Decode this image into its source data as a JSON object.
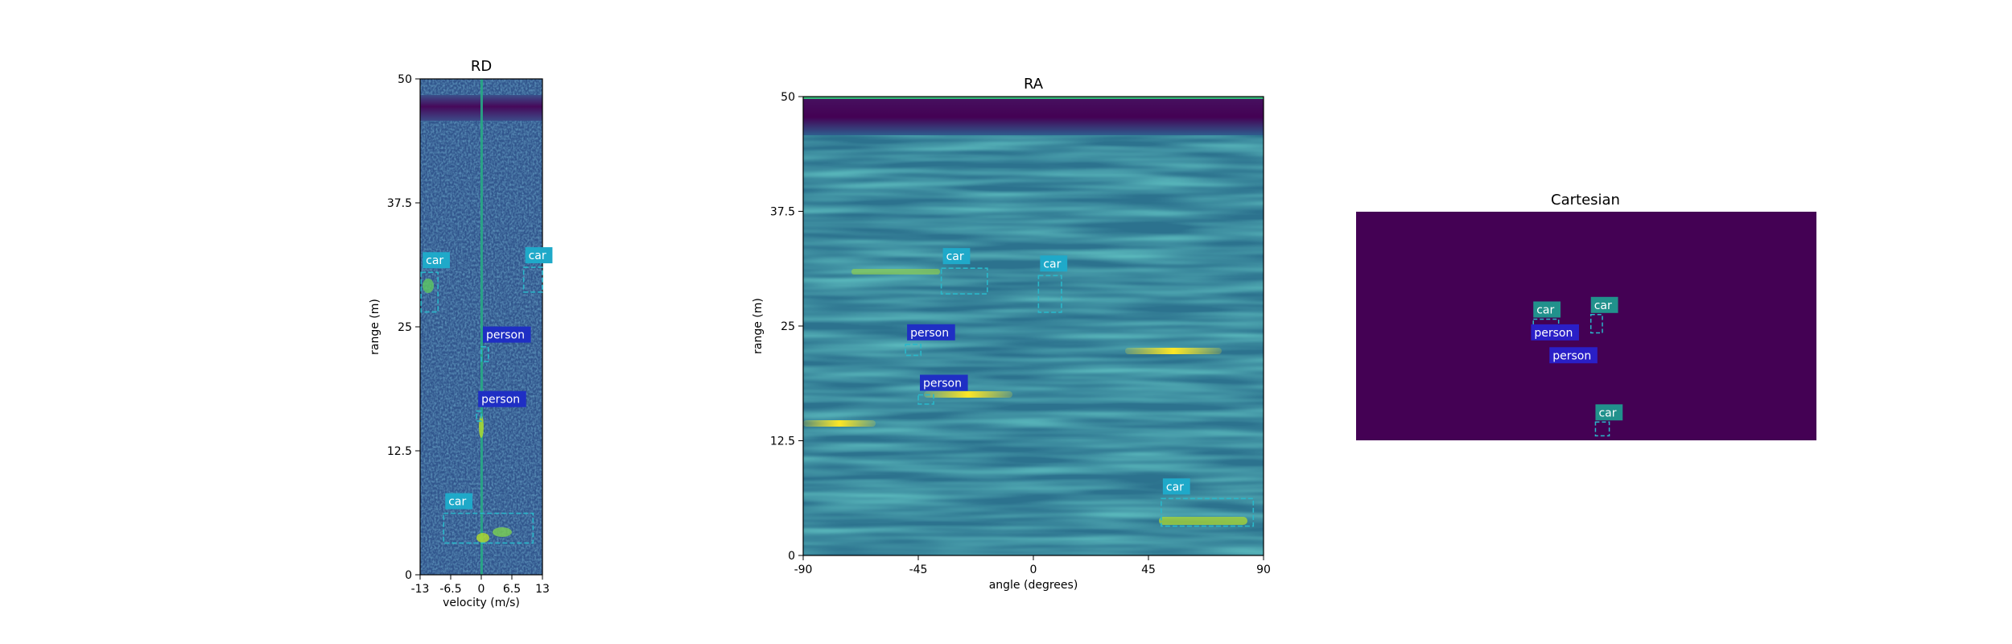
{
  "colors": {
    "background": "#ffffff",
    "axes": "#000000",
    "map_base": "#31558c",
    "map_dark": "#440154",
    "car_box": "#2ab7c9",
    "car_label_bg": "#1fa9c9",
    "person_label_bg": "#1f2fc4",
    "cartesian_bg": "#440154",
    "cartesian_car_label_bg": "#21918c",
    "cartesian_person_label_bg": "#2a1fc7"
  },
  "colormap": "viridis",
  "chart_data": [
    {
      "type": "heatmap",
      "title": "RD",
      "xlabel": "velocity (m/s)",
      "ylabel": "range (m)",
      "xlim": [
        -13,
        13
      ],
      "ylim": [
        0,
        50
      ],
      "xticks": [
        "-13",
        "-6.5",
        "0",
        "6.5",
        "13"
      ],
      "yticks": [
        "0",
        "12.5",
        "25",
        "37.5",
        "50"
      ],
      "xtick_values": [
        -13,
        -6.5,
        0,
        6.5,
        13
      ],
      "ytick_values": [
        0,
        12.5,
        25,
        37.5,
        50
      ],
      "detections": [
        {
          "label": "car",
          "x_range": [
            -12.8,
            -9.2
          ],
          "y_range": [
            26.5,
            30.5
          ]
        },
        {
          "label": "car",
          "x_range": [
            9,
            13
          ],
          "y_range": [
            28.5,
            31
          ]
        },
        {
          "label": "person",
          "x_range": [
            0,
            1.5
          ],
          "y_range": [
            21.5,
            23
          ]
        },
        {
          "label": "person",
          "x_range": [
            -1,
            0
          ],
          "y_range": [
            15.5,
            16.5
          ]
        },
        {
          "label": "car",
          "x_range": [
            -8,
            11
          ],
          "y_range": [
            3.2,
            6.2
          ]
        }
      ]
    },
    {
      "type": "heatmap",
      "title": "RA",
      "xlabel": "angle (degrees)",
      "ylabel": "range (m)",
      "xlim": [
        -90,
        90
      ],
      "ylim": [
        0,
        50
      ],
      "xticks": [
        "-90",
        "-45",
        "0",
        "45",
        "90"
      ],
      "yticks": [
        "0",
        "12.5",
        "25",
        "37.5",
        "50"
      ],
      "xtick_values": [
        -90,
        -45,
        0,
        45,
        90
      ],
      "ytick_values": [
        0,
        12.5,
        25,
        37.5,
        50
      ],
      "detections": [
        {
          "label": "car",
          "x_range": [
            -36,
            -18
          ],
          "y_range": [
            28.5,
            31.3
          ]
        },
        {
          "label": "car",
          "x_range": [
            2,
            11
          ],
          "y_range": [
            26.5,
            30.5
          ]
        },
        {
          "label": "person",
          "x_range": [
            -50,
            -44
          ],
          "y_range": [
            21.8,
            23
          ]
        },
        {
          "label": "person",
          "x_range": [
            -45,
            -39
          ],
          "y_range": [
            16.5,
            17.5
          ]
        },
        {
          "label": "car",
          "x_range": [
            50,
            86
          ],
          "y_range": [
            3.2,
            6.2
          ]
        }
      ]
    },
    {
      "type": "heatmap",
      "title": "Cartesian",
      "detections": [
        {
          "label": "car",
          "x_range": [
            0.385,
            0.44
          ],
          "y_range": [
            0.46,
            0.53
          ]
        },
        {
          "label": "car",
          "x_range": [
            0.51,
            0.535
          ],
          "y_range": [
            0.47,
            0.55
          ]
        },
        {
          "label": "person",
          "x_range": [
            0.38,
            0.42
          ],
          "y_range": [
            0.4,
            0.43
          ]
        },
        {
          "label": "person",
          "x_range": [
            0.42,
            0.46
          ],
          "y_range": [
            0.3,
            0.33
          ]
        },
        {
          "label": "car",
          "x_range": [
            0.52,
            0.55
          ],
          "y_range": [
            0.02,
            0.08
          ]
        }
      ]
    }
  ]
}
